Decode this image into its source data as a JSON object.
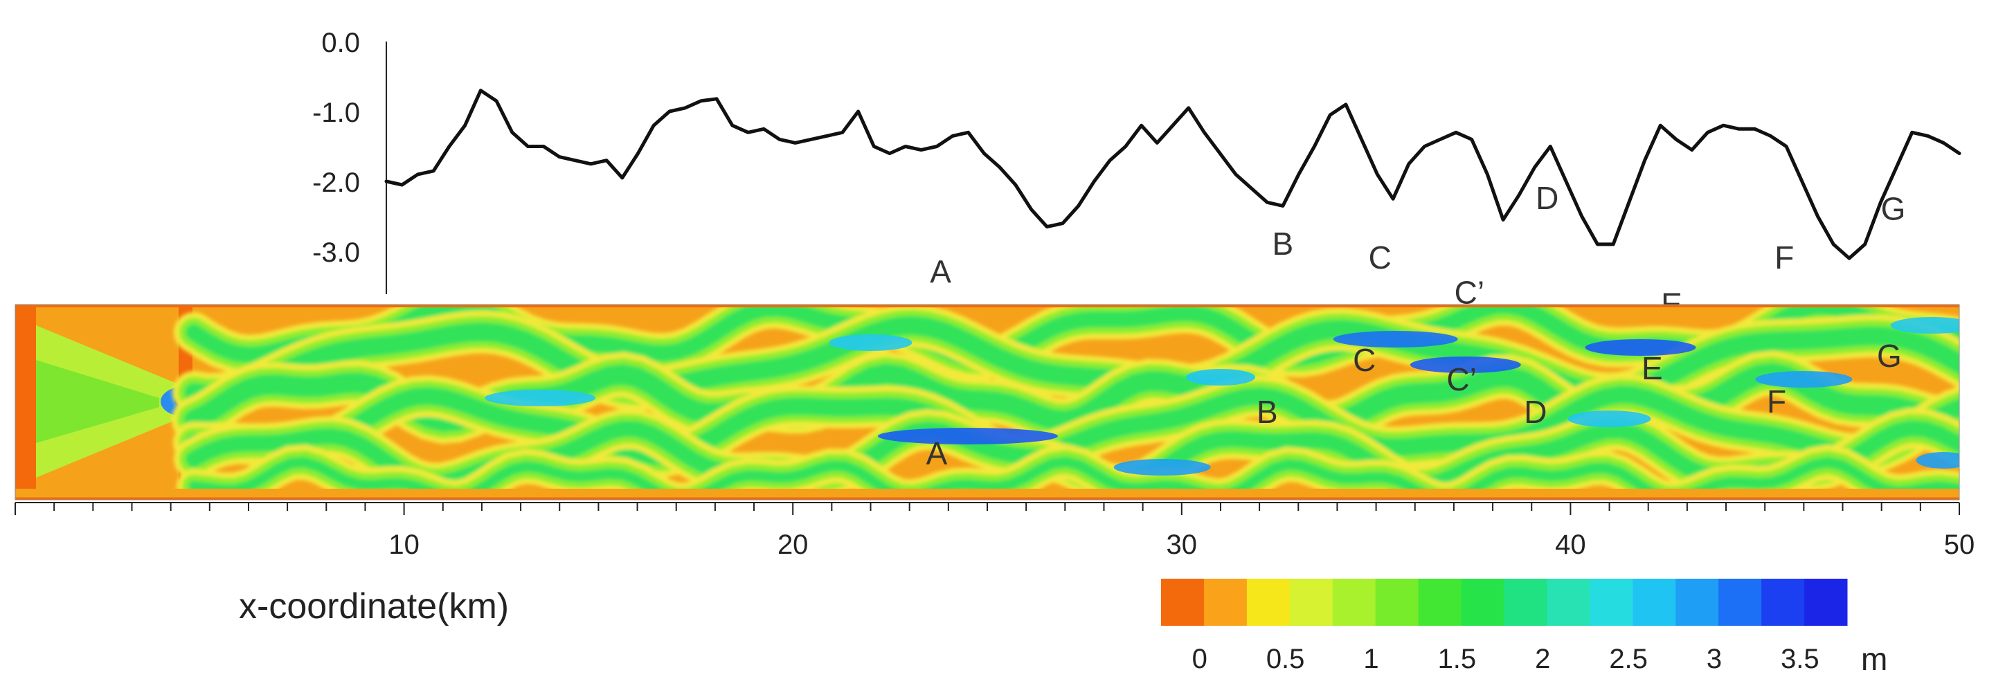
{
  "chart_data": [
    {
      "type": "line",
      "title": "",
      "xlabel": "",
      "ylabel": "",
      "ylim": [
        -3.8,
        0.0
      ],
      "xlim": [
        0,
        50
      ],
      "grid": false,
      "y_ticks": [
        "0.0",
        "-1.0",
        "-2.0",
        "-3.0"
      ],
      "y_tick_values": [
        0.0,
        -1.0,
        -2.0,
        -3.0
      ],
      "series": [
        {
          "x": [
            0,
            0.5,
            1,
            1.5,
            2,
            2.5,
            3,
            3.5,
            4,
            4.5,
            5,
            5.5,
            6,
            6.5,
            7,
            7.5,
            8,
            8.5,
            9,
            9.5,
            10,
            10.5,
            11,
            11.5,
            12,
            12.5,
            13,
            13.5,
            14,
            14.5,
            15,
            15.5,
            16,
            16.5,
            17,
            17.5,
            18,
            18.5,
            19,
            19.5,
            20,
            20.5,
            21,
            21.5,
            22,
            22.5,
            23,
            23.5,
            24,
            24.5,
            25,
            25.5,
            26,
            26.5,
            27,
            27.5,
            28,
            28.5,
            29,
            29.5,
            30,
            30.5,
            31,
            31.5,
            32,
            32.5,
            33,
            33.5,
            34,
            34.5,
            35,
            35.5,
            36,
            36.5,
            37,
            37.5,
            38,
            38.5,
            39,
            39.5,
            40,
            40.5,
            41,
            41.5,
            42,
            42.5,
            43,
            43.5,
            44,
            44.5,
            45,
            45.5,
            46,
            46.5,
            47,
            47.5,
            48,
            48.5,
            49,
            49.5,
            50
          ],
          "values": [
            -2.0,
            -2.05,
            -1.9,
            -1.85,
            -1.5,
            -1.2,
            -0.7,
            -0.85,
            -1.3,
            -1.5,
            -1.5,
            -1.65,
            -1.7,
            -1.75,
            -1.7,
            -1.95,
            -1.6,
            -1.2,
            -1.0,
            -0.95,
            -0.85,
            -0.82,
            -1.2,
            -1.3,
            -1.25,
            -1.4,
            -1.45,
            -1.4,
            -1.35,
            -1.3,
            -1.0,
            -1.5,
            -1.6,
            -1.5,
            -1.55,
            -1.5,
            -1.35,
            -1.3,
            -1.6,
            -1.8,
            -2.05,
            -2.4,
            -2.65,
            -2.6,
            -2.35,
            -2.0,
            -1.7,
            -1.5,
            -1.2,
            -1.45,
            -1.2,
            -0.95,
            -1.3,
            -1.6,
            -1.9,
            -2.1,
            -2.3,
            -2.35,
            -1.9,
            -1.5,
            -1.05,
            -0.9,
            -1.4,
            -1.9,
            -2.25,
            -1.75,
            -1.5,
            -1.4,
            -1.3,
            -1.4,
            -1.9,
            -2.55,
            -2.2,
            -1.8,
            -1.5,
            -2.0,
            -2.5,
            -2.9,
            -2.9,
            -2.3,
            -1.7,
            -1.2,
            -1.4,
            -1.55,
            -1.3,
            -1.2,
            -1.25,
            -1.25,
            -1.35,
            -1.5,
            -2.0,
            -2.5,
            -2.9,
            -3.1,
            -2.9,
            -2.3,
            -1.8,
            -1.3,
            -1.35,
            -1.45,
            -1.6
          ]
        }
      ],
      "annotations": [
        {
          "label": "A",
          "x": 23.8,
          "y": -3.25
        },
        {
          "label": "B",
          "x": 32.6,
          "y": -2.85
        },
        {
          "label": "C",
          "x": 35.1,
          "y": -3.05
        },
        {
          "label": "C’",
          "x": 37.4,
          "y": -3.55
        },
        {
          "label": "D",
          "x": 39.4,
          "y": -2.2
        },
        {
          "label": "E",
          "x": 42.6,
          "y": -3.72
        },
        {
          "label": "F",
          "x": 45.5,
          "y": -3.05
        },
        {
          "label": "G",
          "x": 48.3,
          "y": -2.35
        }
      ]
    },
    {
      "type": "heatmap",
      "title": "",
      "xlabel": "x-coordinate(km)",
      "xlim": [
        0,
        50
      ],
      "x_ticks": [
        10,
        20,
        30,
        40,
        50
      ],
      "x_tick_labels": [
        "10",
        "20",
        "30",
        "40",
        "50"
      ],
      "annotations": [
        {
          "label": "A",
          "x": 23.7
        },
        {
          "label": "B",
          "x": 32.2
        },
        {
          "label": "C",
          "x": 34.7
        },
        {
          "label": "C’",
          "x": 37.2
        },
        {
          "label": "D",
          "x": 39.1
        },
        {
          "label": "E",
          "x": 42.1
        },
        {
          "label": "F",
          "x": 45.3
        },
        {
          "label": "G",
          "x": 48.2
        }
      ],
      "colorbar": {
        "colors": [
          "#f26a0b",
          "#f9a21a",
          "#f5e71a",
          "#d6f230",
          "#a9f02d",
          "#77ec2a",
          "#41e733",
          "#27e34a",
          "#20e283",
          "#29e2b3",
          "#25dde0",
          "#20c4f3",
          "#1f9ef5",
          "#1c70f5",
          "#1b40f2",
          "#1b25e8"
        ],
        "tick_labels": [
          "0",
          "0.5",
          "1",
          "1.5",
          "2",
          "2.5",
          "3",
          "3.5"
        ],
        "tick_values": [
          0,
          0.5,
          1,
          1.5,
          2,
          2.5,
          3,
          3.5
        ],
        "unit": "m"
      }
    }
  ]
}
